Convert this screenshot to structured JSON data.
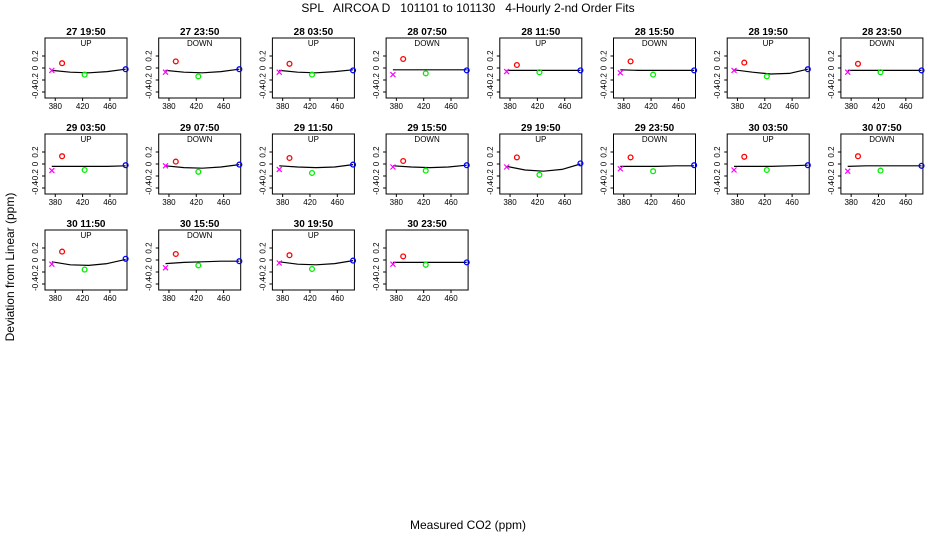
{
  "figure": {
    "title": "SPL   AIRCOA D   101101 to 101130   4-Hourly 2-nd Order Fits",
    "xlabel": "Measured CO2 (ppm)",
    "ylabel": "Deviation from Linear (ppm)"
  },
  "colors": {
    "point1": "#ff00ff",
    "point2": "#ff0000",
    "point3": "#00ee00",
    "point4": "#0000ff",
    "curve": "#000000"
  },
  "chart_data": [
    {
      "type": "scatter",
      "title": "27 19:50",
      "subtitle": "UP",
      "xlim": [
        365,
        485
      ],
      "ylim": [
        -0.5,
        0.5
      ],
      "xticks": [
        380,
        420,
        460
      ],
      "yticks": [
        -0.4,
        -0.2,
        0,
        0.2
      ],
      "points": [
        {
          "x": 375,
          "y": -0.04
        },
        {
          "x": 390,
          "y": 0.08
        },
        {
          "x": 423,
          "y": -0.11
        },
        {
          "x": 483,
          "y": -0.02
        }
      ],
      "fit": [
        -0.04,
        -0.07,
        -0.08,
        -0.06,
        -0.02
      ]
    },
    {
      "type": "scatter",
      "title": "27 23:50",
      "subtitle": "DOWN",
      "xlim": [
        365,
        485
      ],
      "ylim": [
        -0.5,
        0.5
      ],
      "xticks": [
        380,
        420,
        460
      ],
      "yticks": [
        -0.4,
        -0.2,
        0,
        0.2
      ],
      "points": [
        {
          "x": 375,
          "y": -0.07
        },
        {
          "x": 390,
          "y": 0.11
        },
        {
          "x": 423,
          "y": -0.14
        },
        {
          "x": 483,
          "y": -0.02
        }
      ],
      "fit": [
        -0.04,
        -0.07,
        -0.08,
        -0.06,
        -0.02
      ]
    },
    {
      "type": "scatter",
      "title": "28 03:50",
      "subtitle": "UP",
      "xlim": [
        365,
        485
      ],
      "ylim": [
        -0.5,
        0.5
      ],
      "xticks": [
        380,
        420,
        460
      ],
      "yticks": [
        -0.4,
        -0.2,
        0,
        0.2
      ],
      "points": [
        {
          "x": 375,
          "y": -0.07
        },
        {
          "x": 390,
          "y": 0.07
        },
        {
          "x": 423,
          "y": -0.11
        },
        {
          "x": 483,
          "y": -0.04
        }
      ],
      "fit": [
        -0.04,
        -0.07,
        -0.08,
        -0.06,
        -0.03
      ]
    },
    {
      "type": "scatter",
      "title": "28 07:50",
      "subtitle": "DOWN",
      "xlim": [
        365,
        485
      ],
      "ylim": [
        -0.5,
        0.5
      ],
      "xticks": [
        380,
        420,
        460
      ],
      "yticks": [
        -0.4,
        -0.2,
        0,
        0.2
      ],
      "points": [
        {
          "x": 375,
          "y": -0.11
        },
        {
          "x": 390,
          "y": 0.15
        },
        {
          "x": 423,
          "y": -0.09
        },
        {
          "x": 483,
          "y": -0.04
        }
      ],
      "fit": [
        -0.03,
        -0.03,
        -0.03,
        -0.03,
        -0.03
      ]
    },
    {
      "type": "scatter",
      "title": "28 11:50",
      "subtitle": "UP",
      "xlim": [
        365,
        485
      ],
      "ylim": [
        -0.5,
        0.5
      ],
      "xticks": [
        380,
        420,
        460
      ],
      "yticks": [
        -0.4,
        -0.2,
        0,
        0.2
      ],
      "points": [
        {
          "x": 375,
          "y": -0.06
        },
        {
          "x": 390,
          "y": 0.05
        },
        {
          "x": 423,
          "y": -0.07
        },
        {
          "x": 483,
          "y": -0.04
        }
      ],
      "fit": [
        -0.04,
        -0.04,
        -0.04,
        -0.04,
        -0.04
      ]
    },
    {
      "type": "scatter",
      "title": "28 15:50",
      "subtitle": "DOWN",
      "xlim": [
        365,
        485
      ],
      "ylim": [
        -0.5,
        0.5
      ],
      "xticks": [
        380,
        420,
        460
      ],
      "yticks": [
        -0.4,
        -0.2,
        0,
        0.2
      ],
      "points": [
        {
          "x": 375,
          "y": -0.08
        },
        {
          "x": 390,
          "y": 0.11
        },
        {
          "x": 423,
          "y": -0.11
        },
        {
          "x": 483,
          "y": -0.04
        }
      ],
      "fit": [
        -0.03,
        -0.04,
        -0.04,
        -0.04,
        -0.04
      ]
    },
    {
      "type": "scatter",
      "title": "28 19:50",
      "subtitle": "UP",
      "xlim": [
        365,
        485
      ],
      "ylim": [
        -0.5,
        0.5
      ],
      "xticks": [
        380,
        420,
        460
      ],
      "yticks": [
        -0.4,
        -0.2,
        0,
        0.2
      ],
      "points": [
        {
          "x": 375,
          "y": -0.04
        },
        {
          "x": 390,
          "y": 0.09
        },
        {
          "x": 423,
          "y": -0.14
        },
        {
          "x": 483,
          "y": -0.02
        }
      ],
      "fit": [
        -0.03,
        -0.07,
        -0.1,
        -0.09,
        -0.02
      ]
    },
    {
      "type": "scatter",
      "title": "28 23:50",
      "subtitle": "DOWN",
      "xlim": [
        365,
        485
      ],
      "ylim": [
        -0.5,
        0.5
      ],
      "xticks": [
        380,
        420,
        460
      ],
      "yticks": [
        -0.4,
        -0.2,
        0,
        0.2
      ],
      "points": [
        {
          "x": 375,
          "y": -0.07
        },
        {
          "x": 390,
          "y": 0.07
        },
        {
          "x": 423,
          "y": -0.07
        },
        {
          "x": 483,
          "y": -0.04
        }
      ],
      "fit": [
        -0.04,
        -0.04,
        -0.04,
        -0.04,
        -0.04
      ]
    },
    {
      "type": "scatter",
      "title": "29 03:50",
      "subtitle": "UP",
      "xlim": [
        365,
        485
      ],
      "ylim": [
        -0.5,
        0.5
      ],
      "xticks": [
        380,
        420,
        460
      ],
      "yticks": [
        -0.4,
        -0.2,
        0,
        0.2
      ],
      "points": [
        {
          "x": 375,
          "y": -0.11
        },
        {
          "x": 390,
          "y": 0.13
        },
        {
          "x": 423,
          "y": -0.1
        },
        {
          "x": 483,
          "y": -0.02
        }
      ],
      "fit": [
        -0.04,
        -0.04,
        -0.04,
        -0.04,
        -0.03
      ]
    },
    {
      "type": "scatter",
      "title": "29 07:50",
      "subtitle": "DOWN",
      "xlim": [
        365,
        485
      ],
      "ylim": [
        -0.5,
        0.5
      ],
      "xticks": [
        380,
        420,
        460
      ],
      "yticks": [
        -0.4,
        -0.2,
        0,
        0.2
      ],
      "points": [
        {
          "x": 375,
          "y": -0.03
        },
        {
          "x": 390,
          "y": 0.04
        },
        {
          "x": 423,
          "y": -0.13
        },
        {
          "x": 483,
          "y": -0.01
        }
      ],
      "fit": [
        -0.03,
        -0.06,
        -0.07,
        -0.05,
        -0.01
      ]
    },
    {
      "type": "scatter",
      "title": "29 11:50",
      "subtitle": "UP",
      "xlim": [
        365,
        485
      ],
      "ylim": [
        -0.5,
        0.5
      ],
      "xticks": [
        380,
        420,
        460
      ],
      "yticks": [
        -0.4,
        -0.2,
        0,
        0.2
      ],
      "points": [
        {
          "x": 375,
          "y": -0.09
        },
        {
          "x": 390,
          "y": 0.1
        },
        {
          "x": 423,
          "y": -0.15
        },
        {
          "x": 483,
          "y": -0.01
        }
      ],
      "fit": [
        -0.03,
        -0.05,
        -0.06,
        -0.05,
        -0.01
      ]
    },
    {
      "type": "scatter",
      "title": "29 15:50",
      "subtitle": "DOWN",
      "xlim": [
        365,
        485
      ],
      "ylim": [
        -0.5,
        0.5
      ],
      "xticks": [
        380,
        420,
        460
      ],
      "yticks": [
        -0.4,
        -0.2,
        0,
        0.2
      ],
      "points": [
        {
          "x": 375,
          "y": -0.05
        },
        {
          "x": 390,
          "y": 0.05
        },
        {
          "x": 423,
          "y": -0.11
        },
        {
          "x": 483,
          "y": -0.02
        }
      ],
      "fit": [
        -0.03,
        -0.05,
        -0.06,
        -0.05,
        -0.02
      ]
    },
    {
      "type": "scatter",
      "title": "29 19:50",
      "subtitle": "UP",
      "xlim": [
        365,
        485
      ],
      "ylim": [
        -0.5,
        0.5
      ],
      "xticks": [
        380,
        420,
        460
      ],
      "yticks": [
        -0.4,
        -0.2,
        0,
        0.2
      ],
      "points": [
        {
          "x": 375,
          "y": -0.05
        },
        {
          "x": 390,
          "y": 0.11
        },
        {
          "x": 423,
          "y": -0.18
        },
        {
          "x": 483,
          "y": 0.01
        }
      ],
      "fit": [
        -0.04,
        -0.1,
        -0.12,
        -0.09,
        0.0
      ]
    },
    {
      "type": "scatter",
      "title": "29 23:50",
      "subtitle": "DOWN",
      "xlim": [
        365,
        485
      ],
      "ylim": [
        -0.5,
        0.5
      ],
      "xticks": [
        380,
        420,
        460
      ],
      "yticks": [
        -0.4,
        -0.2,
        0,
        0.2
      ],
      "points": [
        {
          "x": 375,
          "y": -0.08
        },
        {
          "x": 390,
          "y": 0.11
        },
        {
          "x": 423,
          "y": -0.12
        },
        {
          "x": 483,
          "y": -0.02
        }
      ],
      "fit": [
        -0.04,
        -0.04,
        -0.04,
        -0.03,
        -0.03
      ]
    },
    {
      "type": "scatter",
      "title": "30 03:50",
      "subtitle": "UP",
      "xlim": [
        365,
        485
      ],
      "ylim": [
        -0.5,
        0.5
      ],
      "xticks": [
        380,
        420,
        460
      ],
      "yticks": [
        -0.4,
        -0.2,
        0,
        0.2
      ],
      "points": [
        {
          "x": 375,
          "y": -0.1
        },
        {
          "x": 390,
          "y": 0.12
        },
        {
          "x": 423,
          "y": -0.1
        },
        {
          "x": 483,
          "y": -0.02
        }
      ],
      "fit": [
        -0.04,
        -0.04,
        -0.04,
        -0.03,
        -0.02
      ]
    },
    {
      "type": "scatter",
      "title": "30 07:50",
      "subtitle": "DOWN",
      "xlim": [
        365,
        485
      ],
      "ylim": [
        -0.5,
        0.5
      ],
      "xticks": [
        380,
        420,
        460
      ],
      "yticks": [
        -0.4,
        -0.2,
        0,
        0.2
      ],
      "points": [
        {
          "x": 375,
          "y": -0.12
        },
        {
          "x": 390,
          "y": 0.13
        },
        {
          "x": 423,
          "y": -0.11
        },
        {
          "x": 483,
          "y": -0.03
        }
      ],
      "fit": [
        -0.04,
        -0.03,
        -0.03,
        -0.03,
        -0.03
      ]
    },
    {
      "type": "scatter",
      "title": "30 11:50",
      "subtitle": "UP",
      "xlim": [
        365,
        485
      ],
      "ylim": [
        -0.5,
        0.5
      ],
      "xticks": [
        380,
        420,
        460
      ],
      "yticks": [
        -0.4,
        -0.2,
        0,
        0.2
      ],
      "points": [
        {
          "x": 375,
          "y": -0.07
        },
        {
          "x": 390,
          "y": 0.14
        },
        {
          "x": 423,
          "y": -0.16
        },
        {
          "x": 483,
          "y": 0.02
        }
      ],
      "fit": [
        -0.03,
        -0.08,
        -0.09,
        -0.06,
        0.01
      ]
    },
    {
      "type": "scatter",
      "title": "30 15:50",
      "subtitle": "DOWN",
      "xlim": [
        365,
        485
      ],
      "ylim": [
        -0.5,
        0.5
      ],
      "xticks": [
        380,
        420,
        460
      ],
      "yticks": [
        -0.4,
        -0.2,
        0,
        0.2
      ],
      "points": [
        {
          "x": 375,
          "y": -0.13
        },
        {
          "x": 390,
          "y": 0.1
        },
        {
          "x": 423,
          "y": -0.09
        },
        {
          "x": 483,
          "y": -0.02
        }
      ],
      "fit": [
        -0.06,
        -0.04,
        -0.03,
        -0.02,
        -0.02
      ]
    },
    {
      "type": "scatter",
      "title": "30 19:50",
      "subtitle": "UP",
      "xlim": [
        365,
        485
      ],
      "ylim": [
        -0.5,
        0.5
      ],
      "xticks": [
        380,
        420,
        460
      ],
      "yticks": [
        -0.4,
        -0.2,
        0,
        0.2
      ],
      "points": [
        {
          "x": 375,
          "y": -0.05
        },
        {
          "x": 390,
          "y": 0.08
        },
        {
          "x": 423,
          "y": -0.15
        },
        {
          "x": 483,
          "y": -0.01
        }
      ],
      "fit": [
        -0.03,
        -0.07,
        -0.08,
        -0.06,
        -0.01
      ]
    },
    {
      "type": "scatter",
      "title": "30 23:50",
      "subtitle": "",
      "xlim": [
        365,
        485
      ],
      "ylim": [
        -0.5,
        0.5
      ],
      "xticks": [
        380,
        420,
        460
      ],
      "yticks": [
        -0.4,
        -0.2,
        0,
        0.2
      ],
      "points": [
        {
          "x": 375,
          "y": -0.07
        },
        {
          "x": 390,
          "y": 0.06
        },
        {
          "x": 423,
          "y": -0.08
        },
        {
          "x": 483,
          "y": -0.04
        }
      ],
      "fit": [
        -0.04,
        -0.04,
        -0.04,
        -0.04,
        -0.04
      ]
    }
  ]
}
